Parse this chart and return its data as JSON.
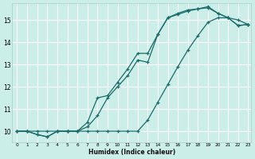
{
  "xlabel": "Humidex (Indice chaleur)",
  "bg_color": "#cceee8",
  "line_color": "#1a6b6b",
  "grid_color": "#ffffff",
  "xmin": -0.5,
  "xmax": 23.3,
  "ymin": 9.5,
  "ymax": 15.75,
  "yticks": [
    10,
    11,
    12,
    13,
    14,
    15
  ],
  "xticks": [
    0,
    1,
    2,
    3,
    4,
    5,
    6,
    7,
    8,
    9,
    10,
    11,
    12,
    13,
    14,
    15,
    16,
    17,
    18,
    19,
    20,
    21,
    22,
    23
  ],
  "line1_x": [
    0,
    1,
    2,
    3,
    4,
    5,
    6,
    7,
    8,
    9,
    10,
    11,
    12,
    13,
    14,
    15,
    16,
    17,
    18,
    19,
    20,
    21,
    22,
    23
  ],
  "line1_y": [
    10.0,
    10.0,
    9.85,
    9.75,
    10.0,
    10.0,
    10.0,
    10.4,
    11.5,
    11.6,
    12.2,
    12.8,
    13.5,
    13.5,
    14.35,
    15.1,
    15.3,
    15.45,
    15.5,
    15.6,
    15.3,
    15.1,
    14.75,
    14.8
  ],
  "line2_x": [
    0,
    1,
    2,
    3,
    4,
    5,
    6,
    7,
    8,
    9,
    10,
    11,
    12,
    13,
    14,
    15,
    16,
    17,
    18,
    19,
    20,
    21,
    22,
    23
  ],
  "line2_y": [
    10.0,
    10.0,
    9.85,
    9.75,
    10.0,
    10.0,
    10.0,
    10.2,
    10.7,
    11.5,
    12.0,
    12.5,
    13.2,
    13.1,
    14.35,
    15.1,
    15.25,
    15.4,
    15.5,
    15.55,
    15.3,
    15.1,
    14.75,
    14.8
  ],
  "line3_x": [
    0,
    1,
    2,
    3,
    4,
    5,
    6,
    7,
    8,
    9,
    10,
    11,
    12,
    13,
    14,
    15,
    16,
    17,
    18,
    19,
    20,
    21,
    22,
    23
  ],
  "line3_y": [
    10.0,
    10.0,
    10.0,
    10.0,
    10.0,
    10.0,
    10.0,
    10.0,
    10.0,
    10.0,
    10.0,
    10.0,
    10.0,
    10.5,
    11.3,
    12.1,
    12.9,
    13.65,
    14.3,
    14.9,
    15.1,
    15.1,
    15.0,
    14.8
  ]
}
